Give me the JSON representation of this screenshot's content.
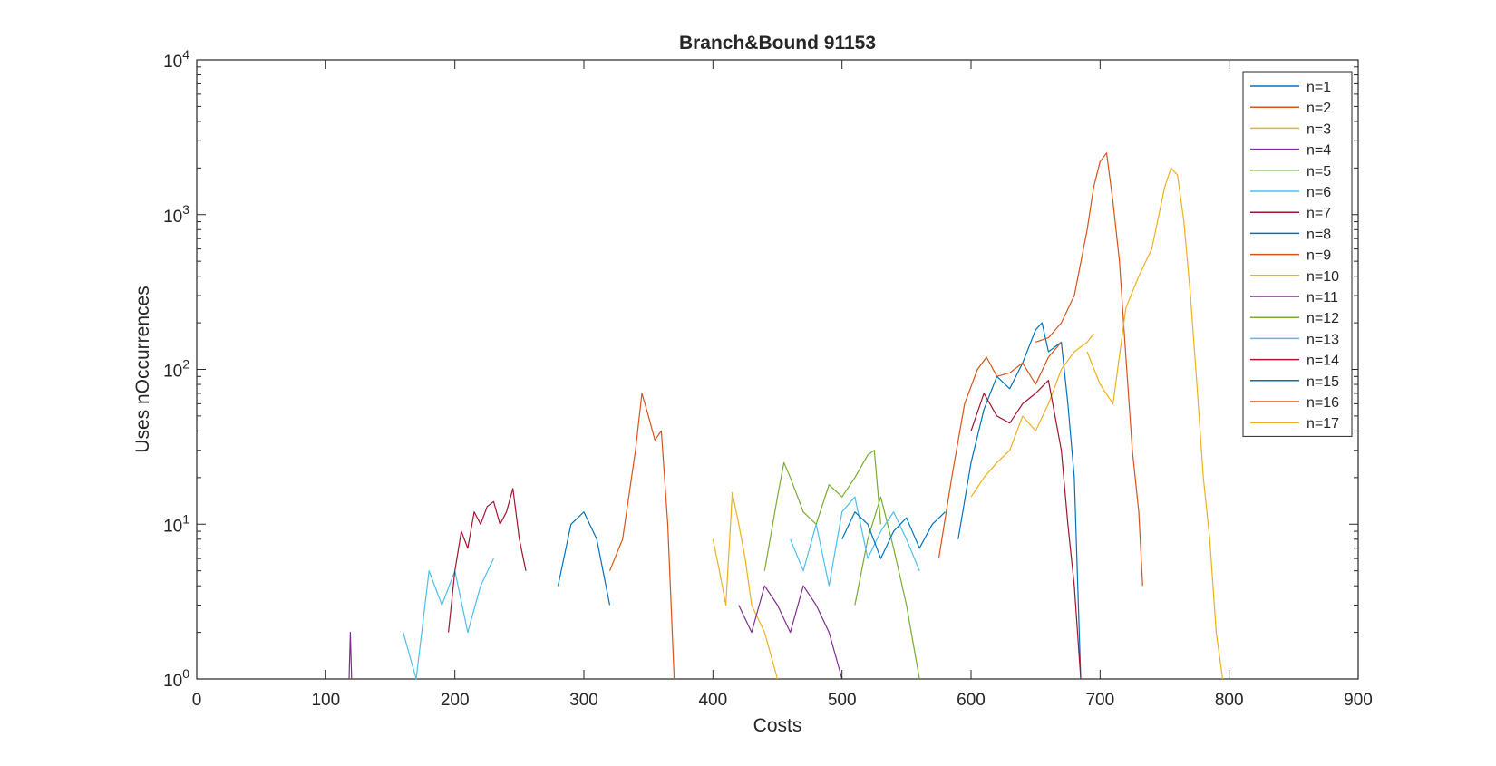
{
  "chart_data": {
    "type": "line",
    "title": "Branch&Bound 91153",
    "xlabel": "Costs",
    "ylabel": "Uses nOccurrences",
    "xlim": [
      0,
      900
    ],
    "ylim_exponents": [
      0,
      4
    ],
    "yscale": "log",
    "x_ticks": [
      "0",
      "100",
      "200",
      "300",
      "400",
      "500",
      "600",
      "700",
      "800",
      "900"
    ],
    "y_tick_base": "10",
    "y_tick_exponents": [
      "0",
      "1",
      "2",
      "3",
      "4"
    ],
    "legend_position": "top-right",
    "grid": false,
    "series": [
      {
        "name": "n=1",
        "color": "#0072BD",
        "x": [
          590,
          600,
          610,
          620,
          630,
          640,
          650,
          655,
          660,
          670,
          675,
          680,
          685
        ],
        "y": [
          8,
          25,
          55,
          90,
          75,
          110,
          180,
          200,
          130,
          150,
          60,
          20,
          1
        ]
      },
      {
        "name": "n=2",
        "color": "#D95319",
        "x": [
          575,
          585,
          595,
          605,
          612,
          620,
          630,
          640,
          650,
          660,
          670
        ],
        "y": [
          6,
          20,
          60,
          100,
          120,
          90,
          95,
          110,
          80,
          120,
          150
        ]
      },
      {
        "name": "n=3",
        "color": "#EDB120",
        "x": [
          600,
          610,
          620,
          630,
          640,
          650,
          660,
          670,
          680,
          690,
          695
        ],
        "y": [
          15,
          20,
          25,
          30,
          50,
          40,
          60,
          100,
          130,
          150,
          170
        ]
      },
      {
        "name": "n=4",
        "color": "#7E2F8E",
        "x": [
          118,
          119,
          120
        ],
        "y": [
          1,
          2,
          1
        ]
      },
      {
        "name": "n=5",
        "color": "#77AC30",
        "x": [
          510,
          520,
          530,
          540,
          550,
          560
        ],
        "y": [
          3,
          8,
          15,
          7,
          3,
          1
        ]
      },
      {
        "name": "n=6",
        "color": "#4DBEEE",
        "x": [
          160,
          170,
          180,
          190,
          200,
          210,
          220,
          230
        ],
        "y": [
          2,
          1,
          5,
          3,
          5,
          2,
          4,
          6
        ]
      },
      {
        "name": "n=7",
        "color": "#A2142F",
        "x": [
          600,
          610,
          620,
          630,
          640,
          650,
          660,
          670,
          675,
          680,
          685
        ],
        "y": [
          40,
          70,
          50,
          45,
          60,
          70,
          85,
          30,
          10,
          4,
          1
        ]
      },
      {
        "name": "n=8",
        "color": "#0072BD",
        "x": [
          280,
          290,
          300,
          310,
          320
        ],
        "y": [
          4,
          10,
          12,
          8,
          3
        ]
      },
      {
        "name": "n=9",
        "color": "#D95319",
        "x": [
          320,
          330,
          340,
          345,
          350,
          355,
          360,
          365,
          370
        ],
        "y": [
          5,
          8,
          30,
          70,
          50,
          35,
          40,
          10,
          1
        ]
      },
      {
        "name": "n=10",
        "color": "#EDB120",
        "x": [
          400,
          405,
          410,
          415,
          420,
          425,
          430,
          440,
          450
        ],
        "y": [
          8,
          5,
          3,
          16,
          10,
          6,
          3,
          2,
          1
        ]
      },
      {
        "name": "n=11",
        "color": "#7E2F8E",
        "x": [
          420,
          430,
          440,
          450,
          460,
          470,
          480,
          490,
          500
        ],
        "y": [
          3,
          2,
          4,
          3,
          2,
          4,
          3,
          2,
          1
        ]
      },
      {
        "name": "n=12",
        "color": "#77AC30",
        "x": [
          440,
          450,
          455,
          460,
          470,
          480,
          490,
          500,
          510,
          520,
          525,
          530
        ],
        "y": [
          5,
          15,
          25,
          20,
          12,
          10,
          18,
          15,
          20,
          28,
          30,
          10
        ]
      },
      {
        "name": "n=13",
        "color": "#4DBEEE",
        "x": [
          460,
          470,
          480,
          490,
          500,
          510,
          520,
          530,
          540,
          550,
          560
        ],
        "y": [
          8,
          5,
          10,
          4,
          12,
          15,
          6,
          9,
          12,
          8,
          5
        ]
      },
      {
        "name": "n=14",
        "color": "#A2142F",
        "x": [
          195,
          200,
          205,
          210,
          215,
          220,
          225,
          230,
          235,
          240,
          245,
          250,
          255
        ],
        "y": [
          2,
          5,
          9,
          7,
          12,
          10,
          13,
          14,
          10,
          12,
          17,
          8,
          5
        ]
      },
      {
        "name": "n=15",
        "color": "#0072BD",
        "x": [
          500,
          510,
          520,
          530,
          540,
          550,
          560,
          570,
          580
        ],
        "y": [
          8,
          12,
          10,
          6,
          9,
          11,
          7,
          10,
          12
        ]
      },
      {
        "name": "n=16",
        "color": "#D95319",
        "x": [
          650,
          660,
          670,
          680,
          690,
          695,
          700,
          705,
          710,
          715,
          720,
          725,
          730,
          733
        ],
        "y": [
          150,
          160,
          200,
          300,
          800,
          1500,
          2200,
          2500,
          1200,
          500,
          120,
          30,
          12,
          4
        ]
      },
      {
        "name": "n=17",
        "color": "#EDB120",
        "x": [
          690,
          700,
          710,
          720,
          730,
          740,
          750,
          755,
          760,
          765,
          770,
          775,
          780,
          785,
          790,
          795
        ],
        "y": [
          130,
          80,
          60,
          250,
          400,
          600,
          1500,
          2000,
          1800,
          900,
          300,
          80,
          20,
          8,
          2,
          1
        ]
      }
    ]
  }
}
